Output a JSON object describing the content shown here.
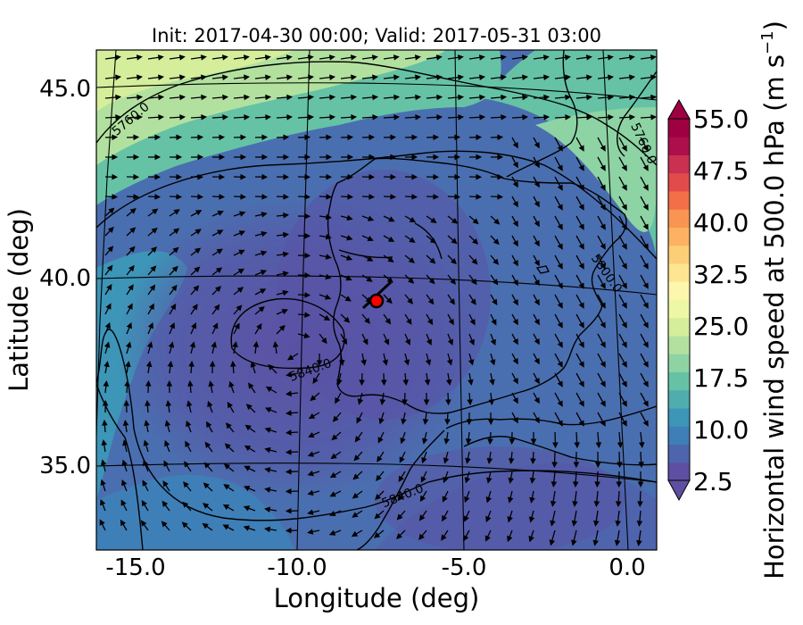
{
  "title": "Init: 2017-04-30 00:00; Valid: 2017-05-31 03:00",
  "xlabel": "Longitude (deg)",
  "ylabel": "Latitude (deg)",
  "x_ticks": [
    "-15.0",
    "-10.0",
    "-5.0",
    "0.0"
  ],
  "y_ticks": [
    "45.0",
    "40.0",
    "35.0"
  ],
  "colorbar": {
    "label_main": "Horizontal wind speed at 500.0 hPa (m s",
    "label_sup": "−1",
    "label_end": ")",
    "ticks": [
      "55.0",
      "47.5",
      "40.0",
      "32.5",
      "25.0",
      "17.5",
      "10.0",
      "2.5"
    ],
    "min": 2.5,
    "max": 55.0,
    "colors": [
      "#5e4fa2",
      "#4e65ad",
      "#3f7fb8",
      "#3d95b8",
      "#4fadad",
      "#66c2a5",
      "#8dd3a4",
      "#b2e19f",
      "#d4ee9b",
      "#eef8a4",
      "#fdf6ad",
      "#fee591",
      "#fdce78",
      "#fcb262",
      "#f89552",
      "#f36f47",
      "#e14c4a",
      "#c93150",
      "#ab0f4c",
      "#9e0142"
    ]
  },
  "contour_labels": [
    "5760.0",
    "5760.0",
    "5800.0",
    "5840.0",
    "5840.0"
  ],
  "marker": {
    "lon": -7.7,
    "lat": 39.3,
    "color": "#ff0000"
  }
}
